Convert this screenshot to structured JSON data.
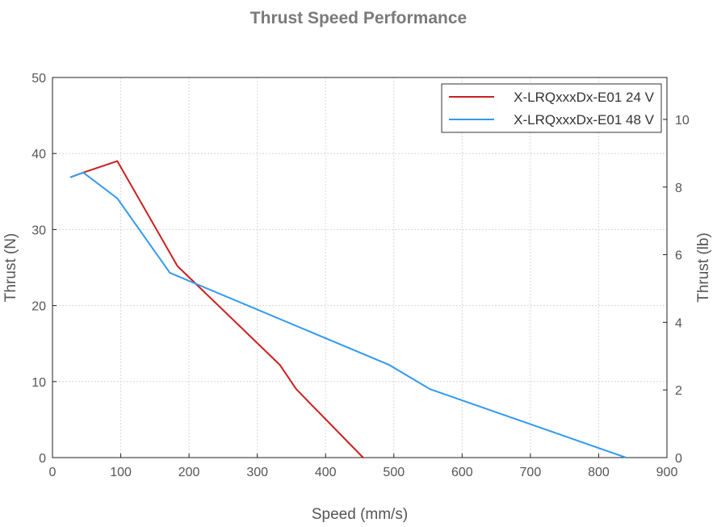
{
  "chart_data": {
    "type": "line",
    "title": "Thrust Speed Performance",
    "xlabel": "Speed (mm/s)",
    "ylabel": "Thrust (N)",
    "ylabel_right": "Thrust (lb)",
    "xlim": [
      0,
      900
    ],
    "ylim": [
      0,
      50
    ],
    "ylim_right": [
      0,
      11.24
    ],
    "x_ticks": [
      0,
      100,
      200,
      300,
      400,
      500,
      600,
      700,
      800,
      900
    ],
    "y_ticks": [
      0,
      10,
      20,
      30,
      40,
      50
    ],
    "y_ticks_right": [
      0,
      2,
      4,
      6,
      8,
      10
    ],
    "grid": true,
    "legend_position": "top-right",
    "series": [
      {
        "name": "X-LRQxxxDx-E01 24 V",
        "color": "#cc1f1f",
        "x": [
          27,
          45,
          95,
          183,
          333,
          357,
          455
        ],
        "y": [
          36.9,
          37.5,
          39.0,
          25.2,
          12.2,
          9.0,
          0
        ]
      },
      {
        "name": "X-LRQxxxDx-E01 48 V",
        "color": "#3399f0",
        "x": [
          27,
          45,
          95,
          172,
          493,
          553,
          840
        ],
        "y": [
          36.9,
          37.5,
          34.1,
          24.3,
          12.2,
          9.0,
          0
        ]
      }
    ]
  }
}
